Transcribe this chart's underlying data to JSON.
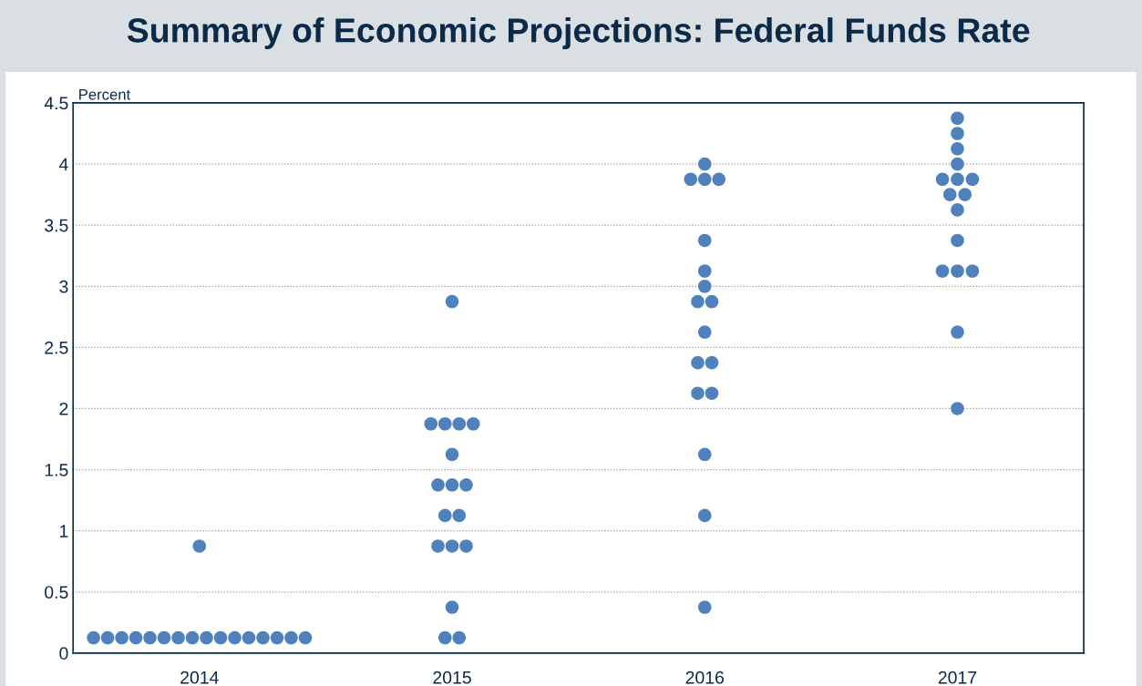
{
  "chart_data": {
    "type": "scatter",
    "title": "Summary of Economic Projections: Federal Funds Rate",
    "ylabel": "Percent",
    "categories": [
      "2014",
      "2015",
      "2016",
      "2017"
    ],
    "series": [
      {
        "color": "#4f81bd",
        "values": [
          0.125,
          0.125,
          0.375,
          2.0
        ]
      },
      {
        "color": "#4f81bd",
        "values": [
          0.125,
          0.125,
          1.125,
          2.625
        ]
      },
      {
        "color": "#4f81bd",
        "values": [
          0.125,
          0.375,
          1.625,
          3.125
        ]
      },
      {
        "color": "#4f81bd",
        "values": [
          0.125,
          0.875,
          2.125,
          3.125
        ]
      },
      {
        "color": "#4f81bd",
        "values": [
          0.125,
          0.875,
          2.125,
          3.125
        ]
      },
      {
        "color": "#4f81bd",
        "values": [
          0.125,
          0.875,
          2.375,
          3.375
        ]
      },
      {
        "color": "#4f81bd",
        "values": [
          0.125,
          1.125,
          2.375,
          3.625
        ]
      },
      {
        "color": "#4f81bd",
        "values": [
          0.125,
          1.125,
          2.625,
          3.75
        ]
      },
      {
        "color": "#4f81bd",
        "values": [
          0.125,
          1.375,
          2.875,
          3.75
        ]
      },
      {
        "color": "#4f81bd",
        "values": [
          0.125,
          1.375,
          2.875,
          3.875
        ]
      },
      {
        "color": "#4f81bd",
        "values": [
          0.125,
          1.375,
          3.0,
          3.875
        ]
      },
      {
        "color": "#4f81bd",
        "values": [
          0.125,
          1.625,
          3.125,
          3.875
        ]
      },
      {
        "color": "#4f81bd",
        "values": [
          0.125,
          1.875,
          3.375,
          4.0
        ]
      },
      {
        "color": "#4f81bd",
        "values": [
          0.125,
          1.875,
          3.875,
          4.125
        ]
      },
      {
        "color": "#4f81bd",
        "values": [
          0.125,
          1.875,
          3.875,
          4.25
        ]
      },
      {
        "color": "#4f81bd",
        "values": [
          0.125,
          1.875,
          3.875,
          4.375
        ]
      },
      {
        "color": "#4f81bd",
        "values": [
          0.875,
          2.875,
          4.0,
          null
        ]
      }
    ],
    "ylim": [
      0,
      4.5
    ],
    "yticks": [
      0,
      0.5,
      1,
      1.5,
      2,
      2.5,
      3,
      3.5,
      4,
      4.5
    ],
    "grid": "y",
    "marker": "circle"
  }
}
